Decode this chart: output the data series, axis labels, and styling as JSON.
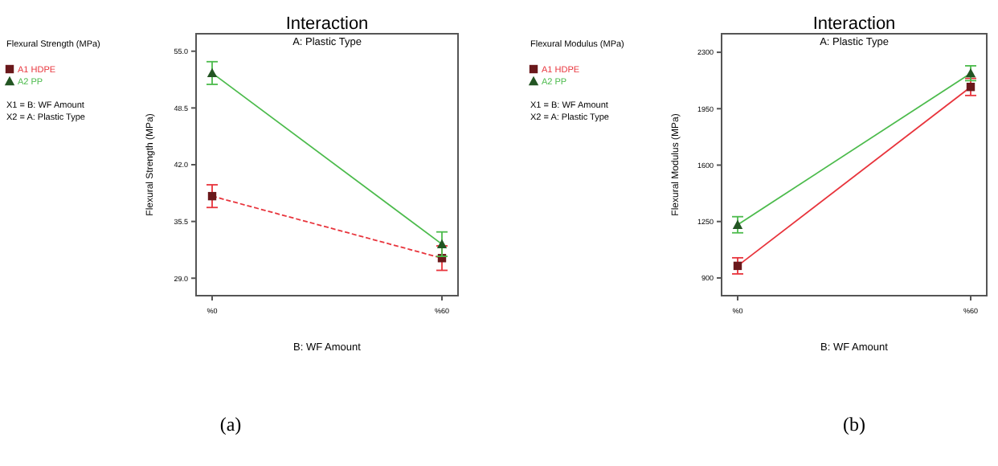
{
  "chart_data": [
    {
      "type": "line",
      "title": "Interaction",
      "subtitle": "A: Plastic Type",
      "xlabel": "B: WF Amount",
      "ylabel": "Flexural Strength (MPa)",
      "categories": [
        "%0",
        "%60"
      ],
      "ylim": [
        27,
        57
      ],
      "yticks": [
        {
          "value": 29,
          "label": "29.0"
        },
        {
          "value": 35.5,
          "label": "35.5"
        },
        {
          "value": 42,
          "label": "42.0"
        },
        {
          "value": 48.5,
          "label": "48.5"
        },
        {
          "value": 55,
          "label": "55.0"
        }
      ],
      "legend": "left",
      "grid": false,
      "series": [
        {
          "name": "A1 HDPE",
          "color": "#e8343c",
          "values": [
            38.4,
            31.3
          ],
          "errors": [
            1.3,
            1.4
          ],
          "marker": "square",
          "line_style": "dashed"
        },
        {
          "name": "A2 PP",
          "color": "#4cbb4c",
          "values": [
            52.5,
            32.9
          ],
          "errors": [
            1.3,
            1.4
          ],
          "marker": "triangle",
          "line_style": "solid"
        }
      ],
      "annotations": [
        "Flexural Strength (MPa)",
        "X1 = B: WF Amount",
        "X2 = A: Plastic Type",
        "(a)"
      ]
    },
    {
      "type": "line",
      "title": "Interaction",
      "subtitle": "A: Plastic Type",
      "xlabel": "B: WF Amount",
      "ylabel": "Flexural Modulus (MPa)",
      "categories": [
        "%0",
        "%60"
      ],
      "ylim": [
        790,
        2415
      ],
      "yticks": [
        900,
        1250,
        1600,
        1950,
        2300
      ],
      "legend": "left",
      "grid": false,
      "series": [
        {
          "name": "A1 HDPE",
          "color": "#e8343c",
          "values": [
            975,
            2085
          ],
          "errors": [
            50,
            53
          ],
          "marker": "square",
          "line_style": "solid"
        },
        {
          "name": "A2 PP",
          "color": "#4cbb4c",
          "values": [
            1230,
            2170
          ],
          "errors": [
            50,
            46
          ],
          "marker": "triangle",
          "line_style": "solid"
        }
      ],
      "annotations": [
        "Flexural Modulus (MPa)",
        "X1 = B: WF Amount",
        "X2 = A: Plastic Type",
        "(b)"
      ]
    }
  ]
}
